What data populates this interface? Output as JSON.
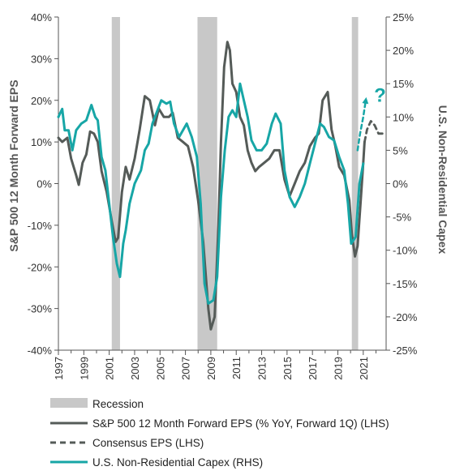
{
  "chart_data": {
    "type": "line",
    "y_left": {
      "label": "S&P 500 12 Month Forward EPS",
      "ticks": [
        40,
        30,
        20,
        10,
        0,
        -10,
        -20,
        -30,
        -40
      ],
      "tick_labels": [
        "40%",
        "30%",
        "20%",
        "10%",
        "0%",
        "-10%",
        "-20%",
        "-30%",
        "-40%"
      ],
      "range": [
        -40,
        40
      ]
    },
    "y_right": {
      "label": "U.S. Non-Residential Capex",
      "ticks": [
        25,
        20,
        15,
        10,
        5,
        0,
        -5,
        -10,
        -15,
        -20,
        -25
      ],
      "tick_labels": [
        "25%",
        "20%",
        "15%",
        "10%",
        "5%",
        "0%",
        "-5%",
        "-10%",
        "-15%",
        "-20%",
        "-25%"
      ],
      "range": [
        -25,
        25
      ]
    },
    "x_axis": {
      "range": [
        1997,
        2022.8
      ],
      "ticks": [
        1997,
        1999,
        2001,
        2003,
        2005,
        2007,
        2009,
        2011,
        2013,
        2015,
        2017,
        2019,
        2021
      ],
      "tick_labels": [
        "1997",
        "1999",
        "2001",
        "2003",
        "2005",
        "2007",
        "2009",
        "2011",
        "2013",
        "2015",
        "2017",
        "2019",
        "2021"
      ]
    },
    "recessions": [
      [
        2001.2,
        2001.85
      ],
      [
        2007.95,
        2009.5
      ],
      [
        2020.1,
        2020.6
      ]
    ],
    "annotation": "?",
    "series": [
      {
        "name": "S&P 500 12 Month Forward EPS (% YoY, Forward 1Q) (LHS)",
        "axis": "left",
        "style": "solid",
        "color": "#555b58",
        "points": [
          [
            1997,
            11
          ],
          [
            1997.3,
            10
          ],
          [
            1997.7,
            11
          ],
          [
            1998,
            6
          ],
          [
            1998.4,
            2
          ],
          [
            1998.6,
            -0.3
          ],
          [
            1998.9,
            5
          ],
          [
            1999.2,
            7
          ],
          [
            1999.5,
            12.5
          ],
          [
            1999.8,
            12
          ],
          [
            2000.1,
            10
          ],
          [
            2000.4,
            3
          ],
          [
            2000.8,
            -2
          ],
          [
            2001.2,
            -9
          ],
          [
            2001.5,
            -14
          ],
          [
            2001.7,
            -13
          ],
          [
            2002,
            -2
          ],
          [
            2002.3,
            4
          ],
          [
            2002.6,
            1
          ],
          [
            2003,
            6
          ],
          [
            2003.4,
            13
          ],
          [
            2003.8,
            21
          ],
          [
            2004.2,
            20
          ],
          [
            2004.6,
            14
          ],
          [
            2004.9,
            18
          ],
          [
            2005.3,
            16
          ],
          [
            2005.7,
            16
          ],
          [
            2006,
            17
          ],
          [
            2006.4,
            11
          ],
          [
            2006.8,
            10
          ],
          [
            2007.2,
            9
          ],
          [
            2007.6,
            4
          ],
          [
            2008,
            -4
          ],
          [
            2008.4,
            -14
          ],
          [
            2008.8,
            -30
          ],
          [
            2009,
            -35
          ],
          [
            2009.3,
            -32
          ],
          [
            2009.6,
            -10
          ],
          [
            2009.8,
            10
          ],
          [
            2010.05,
            28
          ],
          [
            2010.3,
            34
          ],
          [
            2010.5,
            32
          ],
          [
            2010.7,
            24
          ],
          [
            2011,
            22
          ],
          [
            2011.3,
            16
          ],
          [
            2011.6,
            14
          ],
          [
            2011.9,
            8
          ],
          [
            2012.2,
            5
          ],
          [
            2012.5,
            3
          ],
          [
            2012.8,
            4
          ],
          [
            2013.2,
            5
          ],
          [
            2013.6,
            6
          ],
          [
            2014,
            8
          ],
          [
            2014.4,
            8
          ],
          [
            2014.8,
            1
          ],
          [
            2015.2,
            -3
          ],
          [
            2015.6,
            0
          ],
          [
            2016,
            3
          ],
          [
            2016.4,
            5
          ],
          [
            2016.8,
            9
          ],
          [
            2017.2,
            11
          ],
          [
            2017.5,
            12
          ],
          [
            2017.8,
            20
          ],
          [
            2018.2,
            22
          ],
          [
            2018.5,
            13
          ],
          [
            2018.8,
            9
          ],
          [
            2019.1,
            4
          ],
          [
            2019.5,
            2
          ],
          [
            2019.9,
            -4
          ],
          [
            2020.1,
            -12
          ],
          [
            2020.35,
            -17.5
          ],
          [
            2020.55,
            -15
          ],
          [
            2020.8,
            -4
          ],
          [
            2021,
            5
          ],
          [
            2021.1,
            10
          ]
        ]
      },
      {
        "name": "Consensus EPS (LHS)",
        "axis": "left",
        "style": "dashed",
        "color": "#555b58",
        "points": [
          [
            2021.1,
            10
          ],
          [
            2021.3,
            13
          ],
          [
            2021.6,
            15
          ],
          [
            2021.9,
            14
          ],
          [
            2022.2,
            12
          ],
          [
            2022.6,
            12
          ]
        ]
      },
      {
        "name": "U.S. Non-Residential Capex (RHS)",
        "axis": "right",
        "style": "solid",
        "color": "#17a6a6",
        "points": [
          [
            1997,
            10
          ],
          [
            1997.3,
            11.2
          ],
          [
            1997.5,
            8
          ],
          [
            1997.8,
            8
          ],
          [
            1998.1,
            5
          ],
          [
            1998.4,
            8
          ],
          [
            1998.8,
            9
          ],
          [
            1999.2,
            9.5
          ],
          [
            1999.6,
            11.8
          ],
          [
            1999.9,
            10
          ],
          [
            2000.1,
            9.5
          ],
          [
            2000.4,
            4
          ],
          [
            2000.7,
            2
          ],
          [
            2001,
            -3
          ],
          [
            2001.3,
            -8
          ],
          [
            2001.6,
            -12
          ],
          [
            2001.85,
            -14
          ],
          [
            2002.1,
            -9
          ],
          [
            2002.3,
            -7
          ],
          [
            2002.6,
            -3
          ],
          [
            2003,
            0
          ],
          [
            2003.5,
            2
          ],
          [
            2003.8,
            5
          ],
          [
            2004.1,
            6
          ],
          [
            2004.4,
            9
          ],
          [
            2004.8,
            11
          ],
          [
            2005.1,
            12.5
          ],
          [
            2005.5,
            12
          ],
          [
            2005.8,
            12.3
          ],
          [
            2006.1,
            9
          ],
          [
            2006.5,
            7
          ],
          [
            2006.8,
            8
          ],
          [
            2007.1,
            9
          ],
          [
            2007.5,
            7
          ],
          [
            2007.9,
            4
          ],
          [
            2008.2,
            -3
          ],
          [
            2008.5,
            -15
          ],
          [
            2008.8,
            -18
          ],
          [
            2009.2,
            -17.5
          ],
          [
            2009.5,
            -14
          ],
          [
            2009.8,
            -2
          ],
          [
            2010.1,
            5
          ],
          [
            2010.4,
            10
          ],
          [
            2010.7,
            11
          ],
          [
            2011,
            10
          ],
          [
            2011.3,
            15
          ],
          [
            2011.6,
            12.5
          ],
          [
            2011.9,
            10
          ],
          [
            2012.2,
            6.5
          ],
          [
            2012.6,
            5
          ],
          [
            2013,
            5
          ],
          [
            2013.4,
            6
          ],
          [
            2013.8,
            9
          ],
          [
            2014.1,
            10.5
          ],
          [
            2014.5,
            9
          ],
          [
            2014.8,
            2
          ],
          [
            2015.2,
            -2
          ],
          [
            2015.6,
            -3.5
          ],
          [
            2016,
            -2
          ],
          [
            2016.4,
            0
          ],
          [
            2016.8,
            3
          ],
          [
            2017.2,
            6
          ],
          [
            2017.6,
            9
          ],
          [
            2017.9,
            8.5
          ],
          [
            2018.3,
            7
          ],
          [
            2018.7,
            6.5
          ],
          [
            2019.1,
            4
          ],
          [
            2019.5,
            2
          ],
          [
            2019.8,
            -3
          ],
          [
            2020.05,
            -9
          ],
          [
            2020.4,
            -8
          ],
          [
            2020.7,
            0
          ],
          [
            2021,
            3
          ]
        ]
      },
      {
        "name": "Capex projection",
        "axis": "right",
        "style": "dashed-arrow",
        "color": "#17a6a6",
        "points": [
          [
            2020.55,
            5
          ],
          [
            2020.75,
            7.5
          ],
          [
            2021.0,
            10
          ],
          [
            2021.2,
            12.5
          ]
        ]
      }
    ],
    "legend": [
      {
        "label": "Recession",
        "swatch": "block",
        "color": "#c8c8c8"
      },
      {
        "label": "S&P 500 12 Month Forward EPS (% YoY, Forward 1Q) (LHS)",
        "swatch": "line",
        "color": "#555b58"
      },
      {
        "label": "Consensus EPS (LHS)",
        "swatch": "dash",
        "color": "#555b58"
      },
      {
        "label": "U.S. Non-Residential Capex (RHS)",
        "swatch": "line",
        "color": "#17a6a6"
      }
    ],
    "colors": {
      "recession": "#c8c8c8",
      "eps": "#555b58",
      "capex": "#17a6a6",
      "axis": "#555555"
    }
  }
}
